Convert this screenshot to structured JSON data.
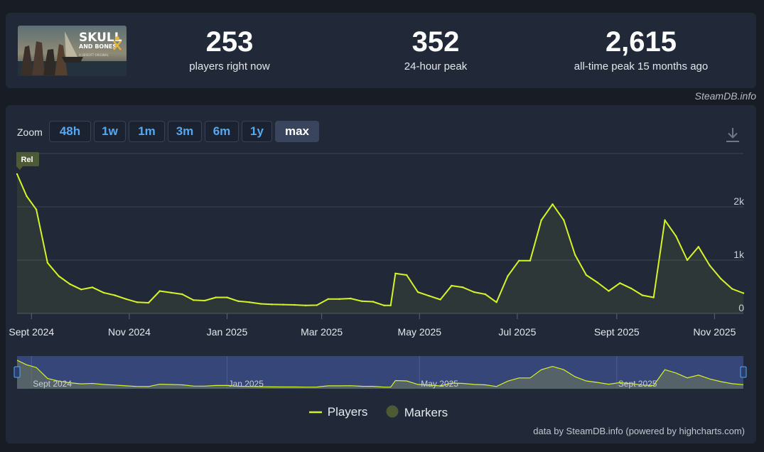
{
  "stats": [
    {
      "value": "253",
      "label": "players right now"
    },
    {
      "value": "352",
      "label": "24-hour peak"
    },
    {
      "value": "2,615",
      "label": "all-time peak 15 months ago"
    }
  ],
  "game_art": {
    "title_line1": "SKULL",
    "title_line2": "AND BONES",
    "subtitle": "A UBISOFT ORIGINAL"
  },
  "credit": "SteamDB.info",
  "zoom": {
    "label": "Zoom",
    "buttons": [
      "48h",
      "1w",
      "1m",
      "3m",
      "6m",
      "1y",
      "max"
    ],
    "active": "max"
  },
  "icons": {
    "download": "download-icon"
  },
  "colors": {
    "line": "#d5f32a",
    "marker": "#4d5a35",
    "panel": "#212938",
    "page": "#181c24",
    "accent_blue": "#57a8f2"
  },
  "release_marker": "Rel",
  "legend": {
    "players": "Players",
    "markers": "Markers"
  },
  "footer": "data by SteamDB.info (powered by highcharts.com)",
  "chart_data": {
    "type": "area",
    "x_unit": "date",
    "y_range": [
      0,
      3000
    ],
    "y_tick_values": [
      0,
      1000,
      2000
    ],
    "y_tick_labels": [
      "0",
      "1k",
      "2k"
    ],
    "grid": true,
    "legend_placement": "bottom-center",
    "x_tick_labels": [
      {
        "date": "2024-09-01",
        "label": "Sept 2024"
      },
      {
        "date": "2024-11-01",
        "label": "Nov 2024"
      },
      {
        "date": "2025-01-01",
        "label": "Jan 2025"
      },
      {
        "date": "2025-03-01",
        "label": "Mar 2025"
      },
      {
        "date": "2025-05-01",
        "label": "May 2025"
      },
      {
        "date": "2025-07-01",
        "label": "Jul 2025"
      },
      {
        "date": "2025-09-01",
        "label": "Sept 2025"
      },
      {
        "date": "2025-11-01",
        "label": "Nov 2025"
      }
    ],
    "navigator_labels": [
      {
        "date": "2024-09-01",
        "label": "Sept 2024"
      },
      {
        "date": "2025-01-01",
        "label": "Jan 2025"
      },
      {
        "date": "2025-05-01",
        "label": "May 2025"
      },
      {
        "date": "2025-09-01",
        "label": "Sept 2025"
      }
    ],
    "series": [
      {
        "name": "Players",
        "points": [
          [
            "2024-08-23",
            2615
          ],
          [
            "2024-08-29",
            2200
          ],
          [
            "2024-09-04",
            1950
          ],
          [
            "2024-09-11",
            950
          ],
          [
            "2024-09-18",
            700
          ],
          [
            "2024-09-25",
            550
          ],
          [
            "2024-10-02",
            450
          ],
          [
            "2024-10-09",
            490
          ],
          [
            "2024-10-16",
            390
          ],
          [
            "2024-10-23",
            340
          ],
          [
            "2024-10-30",
            270
          ],
          [
            "2024-11-06",
            210
          ],
          [
            "2024-11-13",
            200
          ],
          [
            "2024-11-20",
            420
          ],
          [
            "2024-11-27",
            390
          ],
          [
            "2024-12-04",
            360
          ],
          [
            "2024-12-11",
            250
          ],
          [
            "2024-12-18",
            240
          ],
          [
            "2024-12-25",
            300
          ],
          [
            "2025-01-01",
            300
          ],
          [
            "2025-01-08",
            230
          ],
          [
            "2025-01-15",
            210
          ],
          [
            "2025-01-22",
            180
          ],
          [
            "2025-01-29",
            170
          ],
          [
            "2025-02-05",
            165
          ],
          [
            "2025-02-12",
            160
          ],
          [
            "2025-02-19",
            150
          ],
          [
            "2025-02-26",
            155
          ],
          [
            "2025-03-05",
            270
          ],
          [
            "2025-03-12",
            270
          ],
          [
            "2025-03-19",
            280
          ],
          [
            "2025-03-26",
            230
          ],
          [
            "2025-04-02",
            220
          ],
          [
            "2025-04-09",
            150
          ],
          [
            "2025-04-13",
            150
          ],
          [
            "2025-04-16",
            750
          ],
          [
            "2025-04-23",
            720
          ],
          [
            "2025-04-30",
            400
          ],
          [
            "2025-05-07",
            330
          ],
          [
            "2025-05-14",
            260
          ],
          [
            "2025-05-21",
            520
          ],
          [
            "2025-05-28",
            490
          ],
          [
            "2025-06-04",
            400
          ],
          [
            "2025-06-11",
            360
          ],
          [
            "2025-06-18",
            210
          ],
          [
            "2025-06-25",
            700
          ],
          [
            "2025-07-02",
            990
          ],
          [
            "2025-07-09",
            990
          ],
          [
            "2025-07-16",
            1750
          ],
          [
            "2025-07-23",
            2050
          ],
          [
            "2025-07-30",
            1750
          ],
          [
            "2025-08-06",
            1100
          ],
          [
            "2025-08-13",
            720
          ],
          [
            "2025-08-20",
            580
          ],
          [
            "2025-08-27",
            420
          ],
          [
            "2025-09-03",
            570
          ],
          [
            "2025-09-10",
            470
          ],
          [
            "2025-09-17",
            340
          ],
          [
            "2025-09-24",
            300
          ],
          [
            "2025-10-01",
            1750
          ],
          [
            "2025-10-08",
            1450
          ],
          [
            "2025-10-15",
            1000
          ],
          [
            "2025-10-22",
            1250
          ],
          [
            "2025-10-29",
            900
          ],
          [
            "2025-11-05",
            650
          ],
          [
            "2025-11-12",
            460
          ],
          [
            "2025-11-19",
            380
          ]
        ]
      }
    ],
    "markers": [
      {
        "date": "2024-08-23",
        "label": "Rel"
      }
    ]
  }
}
